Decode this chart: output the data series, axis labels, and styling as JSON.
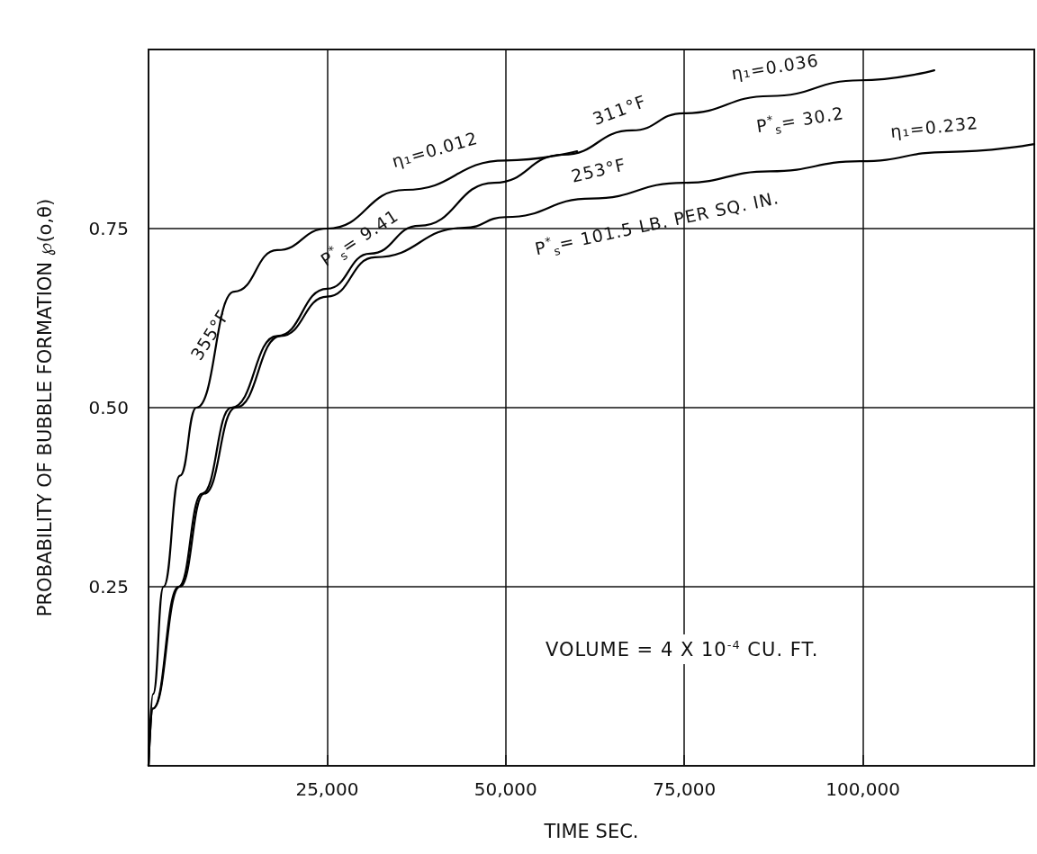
{
  "chart_data": {
    "type": "line",
    "xlabel": "TIME SEC.",
    "ylabel": "PROBABILITY OF BUBBLE FORMATION ℘(o,θ)",
    "xlim": [
      0,
      124000
    ],
    "ylim": [
      0,
      1
    ],
    "xticks": [
      {
        "value": 25000,
        "label": "25,000"
      },
      {
        "value": 50000,
        "label": "50,000"
      },
      {
        "value": 75000,
        "label": "75,000"
      },
      {
        "value": 100000,
        "label": "100,000"
      }
    ],
    "yticks": [
      0.25,
      {
        "value": 0.5,
        "label": "0.50"
      },
      0.75
    ],
    "grid": true,
    "marker": "none",
    "line_style": "solid",
    "series": [
      {
        "color": "#000000",
        "x": [
          0,
          630,
          2100,
          4400,
          6700,
          12000,
          18000,
          25000,
          35900,
          50000,
          60000
        ],
        "values": [
          0,
          0.1,
          0.25,
          0.405,
          0.5,
          0.662,
          0.72,
          0.75,
          0.804,
          0.845,
          0.858
        ]
      },
      {
        "color": "#000000",
        "x": [
          0,
          600,
          4200,
          7500,
          11600,
          18000,
          25000,
          31000,
          37900,
          48400,
          58000,
          67700,
          74900,
          87000,
          99600,
          110000
        ],
        "values": [
          0,
          0.08,
          0.25,
          0.38,
          0.5,
          0.6,
          0.666,
          0.715,
          0.754,
          0.814,
          0.853,
          0.887,
          0.911,
          0.935,
          0.957,
          0.971
        ]
      },
      {
        "color": "#000000",
        "x": [
          0,
          600,
          4400,
          7800,
          12200,
          18500,
          25000,
          31700,
          44200,
          50000,
          62000,
          74900,
          87000,
          99600,
          112000,
          124000
        ],
        "values": [
          0,
          0.08,
          0.25,
          0.38,
          0.5,
          0.6,
          0.655,
          0.71,
          0.751,
          0.766,
          0.792,
          0.814,
          0.83,
          0.844,
          0.857,
          0.868
        ]
      }
    ],
    "annotations": [
      "355°F",
      "η₁=0.012",
      "P$^{*}$$_{s}$= 9.41",
      "311°F",
      "η₁=0.036",
      "P$^{*}$$_{s}$= 30.2",
      "η₁=0.232",
      "253°F",
      "P$^{*}$$_{s}$= 101.5 LB. PER SQ. IN.",
      "VOLUME = 4 X 10$^{-4}$ CU. FT."
    ]
  }
}
